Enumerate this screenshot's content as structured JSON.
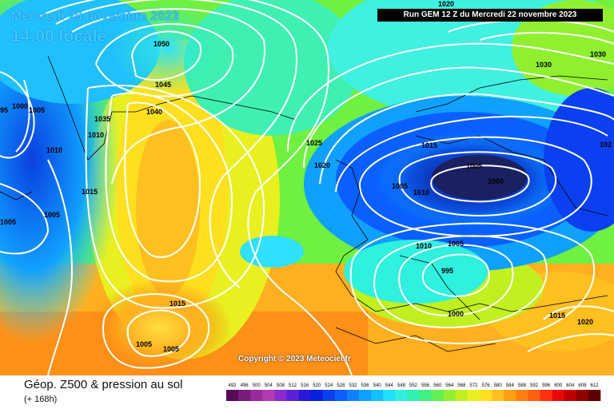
{
  "header": {
    "date_title": "Mercredi 29 novembre 2023",
    "time_title": "14:00 locale",
    "run_info": "Run GEM 12 Z du Mercredi 22 novembre 2023"
  },
  "copyright": "Copyright © 2023 Meteociel.fr",
  "legend": {
    "title": "Géop. Z500 & pression au sol",
    "subtitle": "(+ 168h)",
    "scale_values": [
      "492",
      "496",
      "500",
      "504",
      "508",
      "512",
      "516",
      "520",
      "524",
      "528",
      "532",
      "536",
      "540",
      "544",
      "548",
      "552",
      "556",
      "560",
      "564",
      "568",
      "572",
      "576",
      "580",
      "584",
      "588",
      "592",
      "596",
      "600",
      "604",
      "608",
      "612"
    ],
    "scale_colors": [
      "#5a0a5a",
      "#7a1a7a",
      "#9a2a9a",
      "#b23ab2",
      "#8a2ad0",
      "#5a20d8",
      "#2a18d8",
      "#0a20e0",
      "#0a40f0",
      "#0a60ff",
      "#1080ff",
      "#10a0ff",
      "#10c0ff",
      "#20e0ff",
      "#30f0e0",
      "#30f0b0",
      "#40f080",
      "#60f050",
      "#90f030",
      "#c0f020",
      "#e8f020",
      "#ffe020",
      "#ffc020",
      "#ffa010",
      "#ff8010",
      "#ff6010",
      "#ff3010",
      "#e80808",
      "#c00000",
      "#900000",
      "#600000"
    ]
  },
  "isobars": [
    "1050",
    "1045",
    "1040",
    "1035",
    "1030",
    "1025",
    "1020",
    "1015",
    "1010",
    "1005",
    "1000",
    "995",
    "1000",
    "1005",
    "1010",
    "1015",
    "1015",
    "1020",
    "1020",
    "1025",
    "1030",
    "1035",
    "1005",
    "1010",
    "1005",
    "1005",
    "1005",
    "1005",
    "1010",
    "1015",
    "1020",
    "995",
    "1000",
    "1005",
    "1010",
    "1015",
    "1020",
    "1005",
    "1000",
    "95",
    "102"
  ]
}
